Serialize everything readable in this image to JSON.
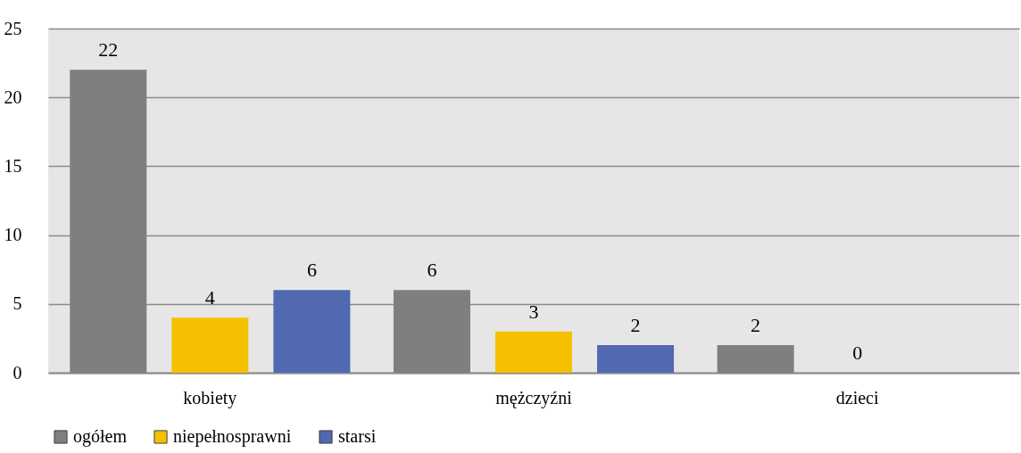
{
  "chart_data": {
    "type": "bar",
    "categories": [
      "kobiety",
      "mężczyźni",
      "dzieci"
    ],
    "series": [
      {
        "name": "ogółem",
        "color": "#7f7f7f",
        "values": [
          22,
          6,
          2
        ]
      },
      {
        "name": "niepełnosprawni",
        "color": "#f5c000",
        "values": [
          4,
          3,
          0
        ]
      },
      {
        "name": "starsi",
        "color": "#5069b0",
        "values": [
          6,
          2,
          null
        ]
      }
    ],
    "ylim": [
      0,
      25
    ],
    "yticks": [
      0,
      5,
      10,
      15,
      20,
      25
    ],
    "grid": "y",
    "legend": "bottom",
    "data_labels": true
  }
}
